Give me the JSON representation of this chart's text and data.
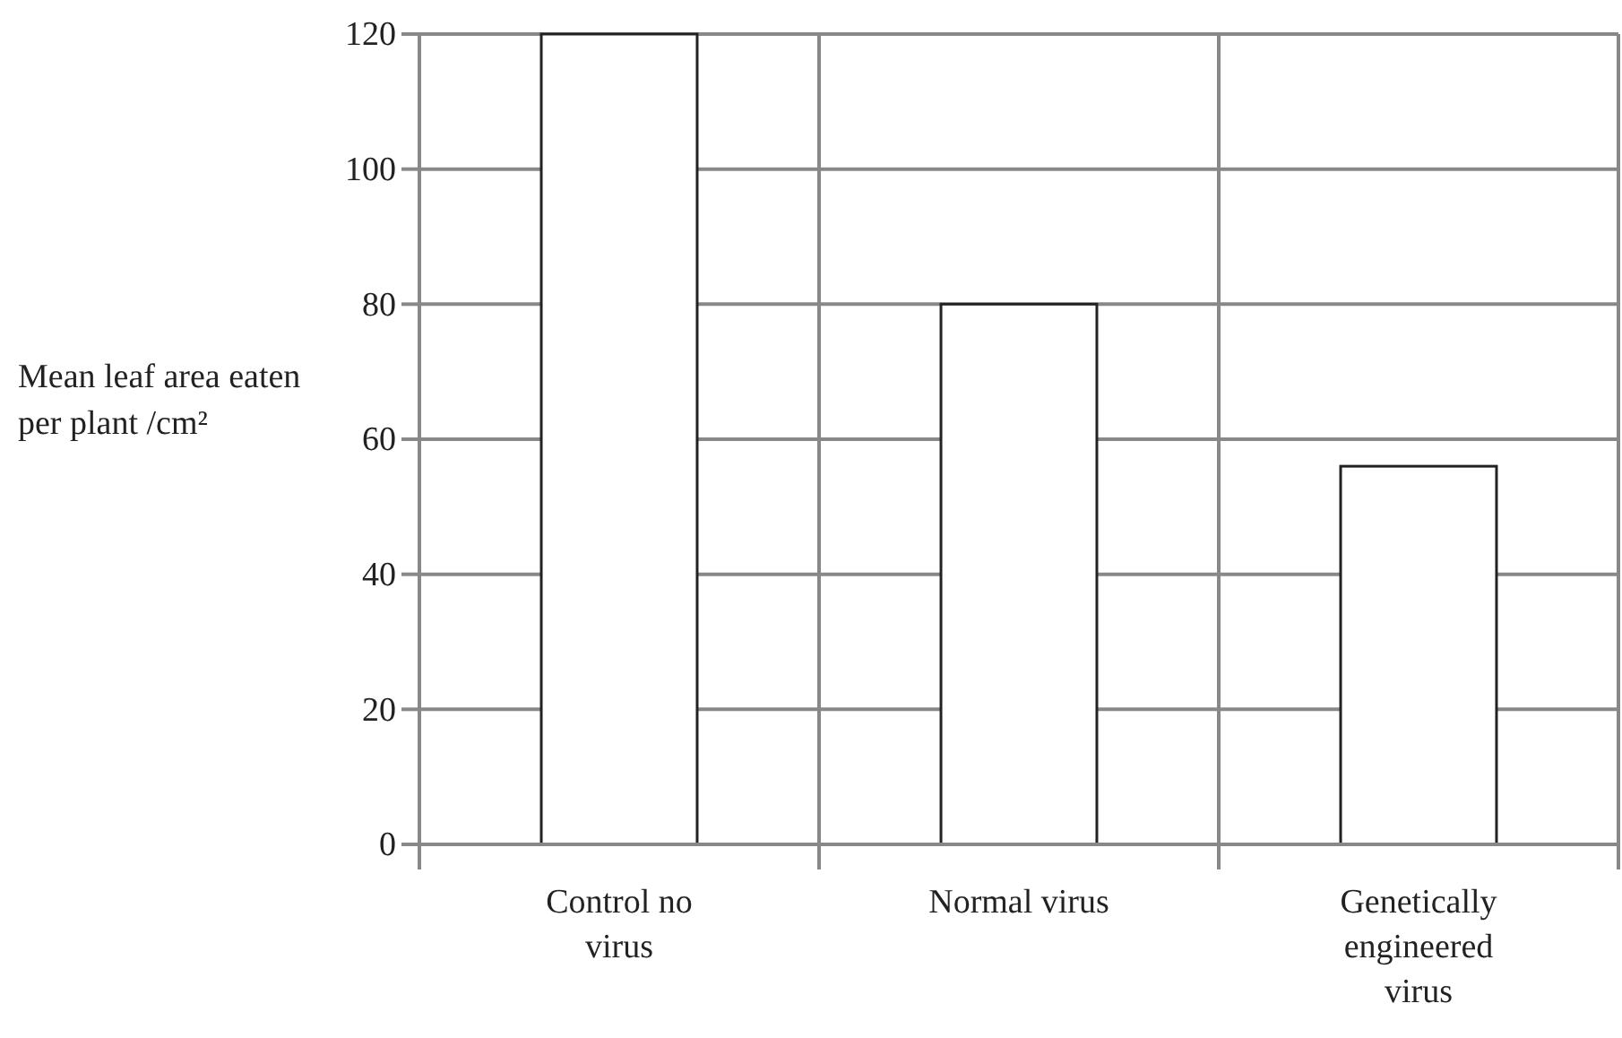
{
  "chart_data": {
    "type": "bar",
    "ylabel": "Mean leaf area eaten per plant /cm²",
    "categories": [
      "Control no virus",
      "Normal virus",
      "Genetically engineered virus"
    ],
    "values": [
      120,
      80,
      56
    ],
    "color": "#ffffff",
    "ylim": [
      0,
      120
    ],
    "yticks": [
      0,
      20,
      40,
      60,
      80,
      100,
      120
    ],
    "grid": true
  }
}
